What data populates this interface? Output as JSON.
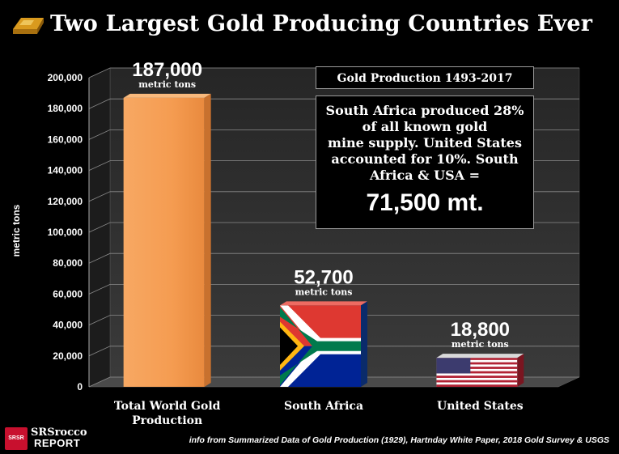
{
  "title": "Two Largest Gold Producing Countries Ever",
  "icons": {
    "gold_bar": "gold-bar-icon",
    "logo": "srsrocco-logo"
  },
  "colors": {
    "world_bar": "#f6a15a",
    "background": "#000000",
    "panel": "#2e2e2e"
  },
  "period_label": "Gold Production 1493-2017",
  "note": {
    "line1": "South Africa produced 28% of all known gold",
    "line2": "mine supply. United States accounted for 10%. South Africa & USA =",
    "total": "71,500 mt."
  },
  "logo": {
    "badge": "SRSR",
    "name": "SRSrocco",
    "sub": "REPORT"
  },
  "source": "info from Summarized Data of Gold Production (1929), Hartnday White Paper, 2018 Gold Survey & USGS",
  "chart_data": {
    "type": "bar",
    "title": "Two Largest Gold Producing Countries Ever",
    "ylabel": "metric tons",
    "xlabel": "",
    "ylim": [
      0,
      200000
    ],
    "yticks": [
      "0",
      "20,000",
      "40,000",
      "60,000",
      "80,000",
      "100,000",
      "120,000",
      "140,000",
      "160,000",
      "180,000",
      "200,000"
    ],
    "categories": [
      {
        "line1": "Total World Gold",
        "line2": "Production"
      },
      {
        "line1": "South Africa",
        "line2": ""
      },
      {
        "line1": "United States",
        "line2": ""
      }
    ],
    "values": [
      187000,
      52700,
      18800
    ],
    "value_labels": [
      "187,000",
      "52,700",
      "18,800"
    ],
    "unit_label": "metric tons",
    "grid": true
  }
}
